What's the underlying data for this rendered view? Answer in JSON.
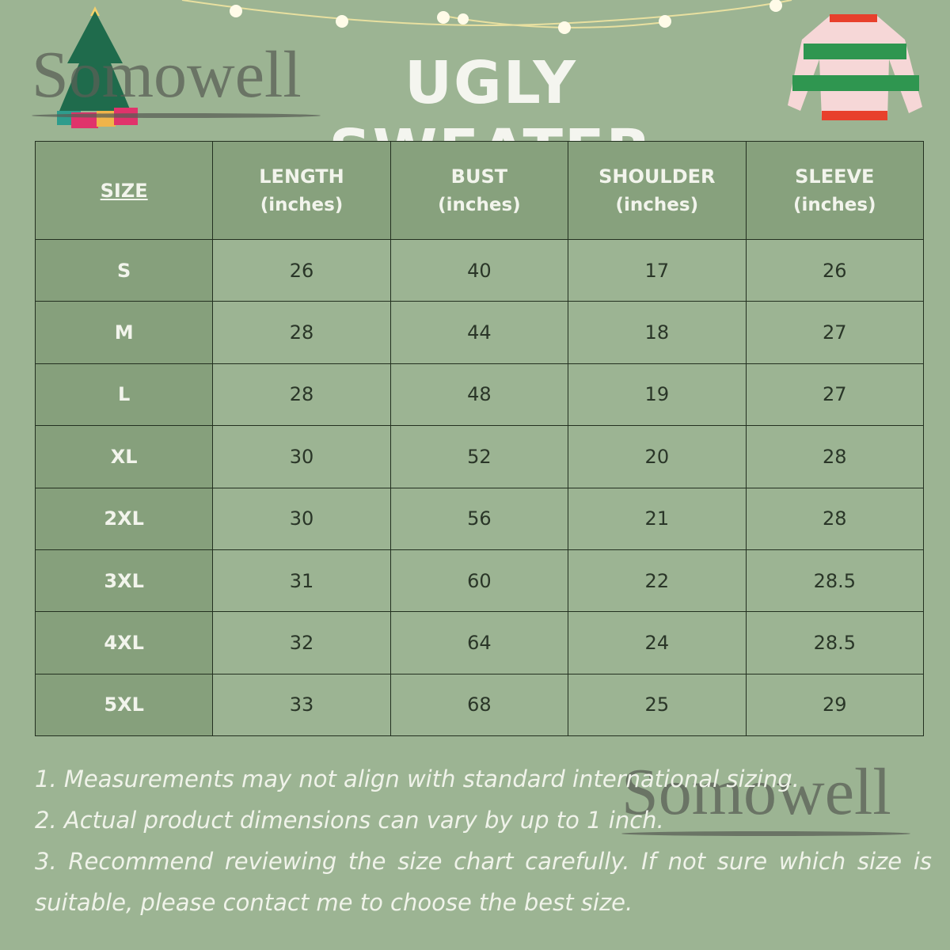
{
  "title": "UGLY SWEATER",
  "watermark": "Somowell",
  "colors": {
    "background": "#9cb493",
    "header": "#87a17d",
    "size_column": "#86a07c",
    "text": "#2a3628"
  },
  "table": {
    "headers": [
      {
        "label": "SIZE",
        "unit": ""
      },
      {
        "label": "LENGTH",
        "unit": "(inches)"
      },
      {
        "label": "BUST",
        "unit": "(inches)"
      },
      {
        "label": "SHOULDER",
        "unit": "(inches)"
      },
      {
        "label": "SLEEVE",
        "unit": "(inches)"
      }
    ],
    "rows": [
      [
        "S",
        "26",
        "40",
        "17",
        "26"
      ],
      [
        "M",
        "28",
        "44",
        "18",
        "27"
      ],
      [
        "L",
        "28",
        "48",
        "19",
        "27"
      ],
      [
        "XL",
        "30",
        "52",
        "20",
        "28"
      ],
      [
        "2XL",
        "30",
        "56",
        "21",
        "28"
      ],
      [
        "3XL",
        "31",
        "60",
        "22",
        "28.5"
      ],
      [
        "4XL",
        "32",
        "64",
        "24",
        "28.5"
      ],
      [
        "5XL",
        "33",
        "68",
        "25",
        "29"
      ]
    ]
  },
  "notes": [
    "1. Measurements may not align with standard international sizing.",
    "2. Actual product dimensions can vary by up to 1 inch.",
    "3. Recommend reviewing the size chart carefully. If not sure which size is suitable, please contact me to choose the best size."
  ]
}
